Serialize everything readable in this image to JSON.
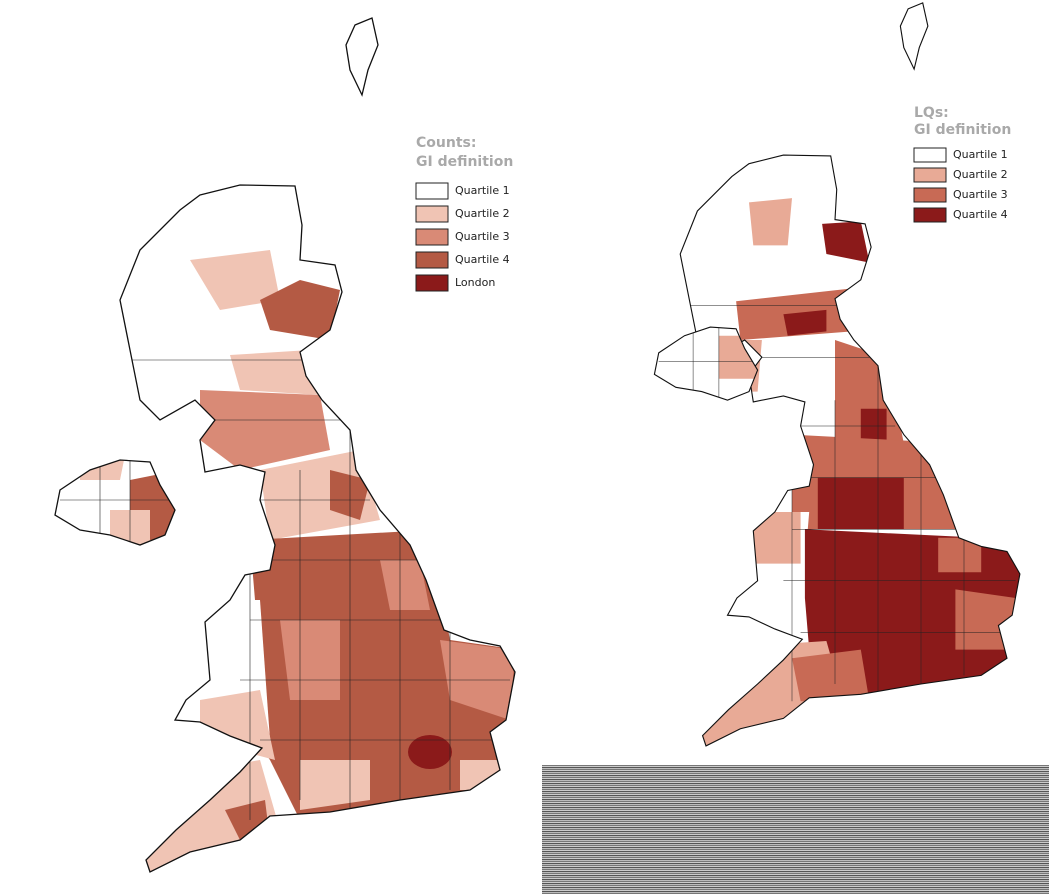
{
  "maps": [
    {
      "title_lines": [
        "Counts:",
        "GI definition"
      ],
      "legend": [
        "Quartile 1",
        "Quartile 2",
        "Quartile 3",
        "Quartile 4",
        "London"
      ]
    },
    {
      "title_lines": [
        "LQs:",
        "GI definition"
      ],
      "legend": [
        "Quartile 1",
        "Quartile 2",
        "Quartile 3",
        "Quartile 4"
      ]
    }
  ]
}
